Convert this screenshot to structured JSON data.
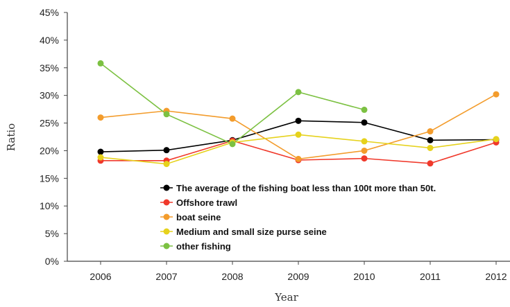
{
  "chart_data": {
    "type": "line",
    "xlabel": "Year",
    "ylabel": "Ratio",
    "categories": [
      "2006",
      "2007",
      "2008",
      "2009",
      "2010",
      "2011",
      "2012"
    ],
    "ylim": [
      0,
      45
    ],
    "yticks": [
      "0%",
      "5%",
      "10%",
      "15%",
      "20%",
      "25%",
      "30%",
      "35%",
      "40%",
      "45%"
    ],
    "ytick_values": [
      0,
      5,
      10,
      15,
      20,
      25,
      30,
      35,
      40,
      45
    ],
    "grid": false,
    "legend_position": "bottom-right",
    "series": [
      {
        "name": "The average of the fishing boat less than 100t more than 50t.",
        "color": "#000000",
        "values": [
          19.8,
          20.1,
          21.9,
          25.4,
          25.1,
          21.9,
          22.0
        ]
      },
      {
        "name": "Offshore trawl",
        "color": "#f0392b",
        "values": [
          18.2,
          18.2,
          21.8,
          18.3,
          18.6,
          17.7,
          21.5
        ]
      },
      {
        "name": "boat seine",
        "color": "#f39c2c",
        "values": [
          26.0,
          27.2,
          25.8,
          18.5,
          20.0,
          23.5,
          30.2
        ]
      },
      {
        "name": "Medium and small size purse seine",
        "color": "#e6d21c",
        "values": [
          18.8,
          17.6,
          21.5,
          22.9,
          21.7,
          20.5,
          22.1
        ]
      },
      {
        "name": "other fishing",
        "color": "#7cc142",
        "values": [
          35.8,
          26.6,
          21.2,
          30.6,
          27.4,
          null,
          null
        ]
      }
    ]
  }
}
